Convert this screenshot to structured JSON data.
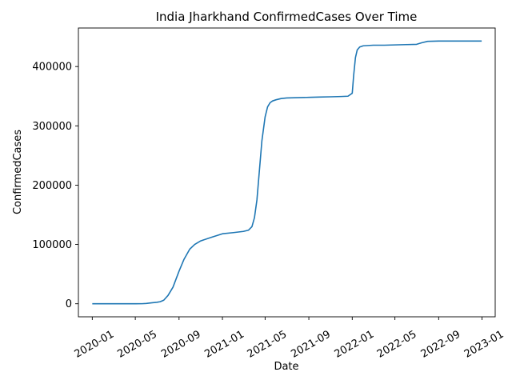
{
  "chart_data": {
    "type": "line",
    "title": "India Jharkhand ConfirmedCases Over Time",
    "xlabel": "Date",
    "ylabel": "ConfirmedCases",
    "x_range": [
      "2019-11-23",
      "2023-02-07"
    ],
    "y_range": [
      -22000,
      465000
    ],
    "x_ticks": [
      "2020-01",
      "2020-05",
      "2020-09",
      "2021-01",
      "2021-05",
      "2021-09",
      "2022-01",
      "2022-05",
      "2022-09",
      "2023-01"
    ],
    "y_ticks": [
      0,
      100000,
      200000,
      300000,
      400000
    ],
    "grid": false,
    "legend": "none",
    "color": "#1f77b4",
    "series": [
      {
        "x": [
          "2020-01-01",
          "2020-03-01",
          "2020-05-01",
          "2020-05-20",
          "2020-06-01",
          "2020-06-15",
          "2020-07-01",
          "2020-07-10",
          "2020-07-20",
          "2020-08-01",
          "2020-08-15",
          "2020-09-01",
          "2020-09-15",
          "2020-10-01",
          "2020-10-15",
          "2020-11-01",
          "2020-12-01",
          "2021-01-01",
          "2021-02-01",
          "2021-03-01",
          "2021-03-15",
          "2021-03-25",
          "2021-04-01",
          "2021-04-08",
          "2021-04-15",
          "2021-04-22",
          "2021-05-01",
          "2021-05-08",
          "2021-05-15",
          "2021-05-22",
          "2021-06-01",
          "2021-06-15",
          "2021-07-01",
          "2021-08-01",
          "2021-09-01",
          "2021-10-01",
          "2021-11-01",
          "2021-12-01",
          "2021-12-20",
          "2022-01-01",
          "2022-01-05",
          "2022-01-10",
          "2022-01-15",
          "2022-01-22",
          "2022-02-01",
          "2022-02-15",
          "2022-03-01",
          "2022-04-01",
          "2022-05-01",
          "2022-06-01",
          "2022-07-01",
          "2022-07-15",
          "2022-08-01",
          "2022-09-01",
          "2022-10-01",
          "2022-11-01",
          "2022-12-01",
          "2022-12-31"
        ],
        "y": [
          0,
          0,
          0,
          100,
          500,
          1500,
          2500,
          3500,
          6000,
          14000,
          28000,
          55000,
          75000,
          92000,
          100000,
          106000,
          112000,
          118000,
          120000,
          122000,
          124000,
          130000,
          145000,
          175000,
          225000,
          275000,
          315000,
          332000,
          339000,
          342000,
          344000,
          346000,
          347000,
          347500,
          348000,
          348500,
          349000,
          349500,
          350000,
          355000,
          385000,
          415000,
          428000,
          433000,
          435000,
          435500,
          436000,
          436000,
          436500,
          437000,
          437500,
          440000,
          442500,
          443000,
          443000,
          443000,
          443000,
          443000
        ]
      }
    ]
  }
}
